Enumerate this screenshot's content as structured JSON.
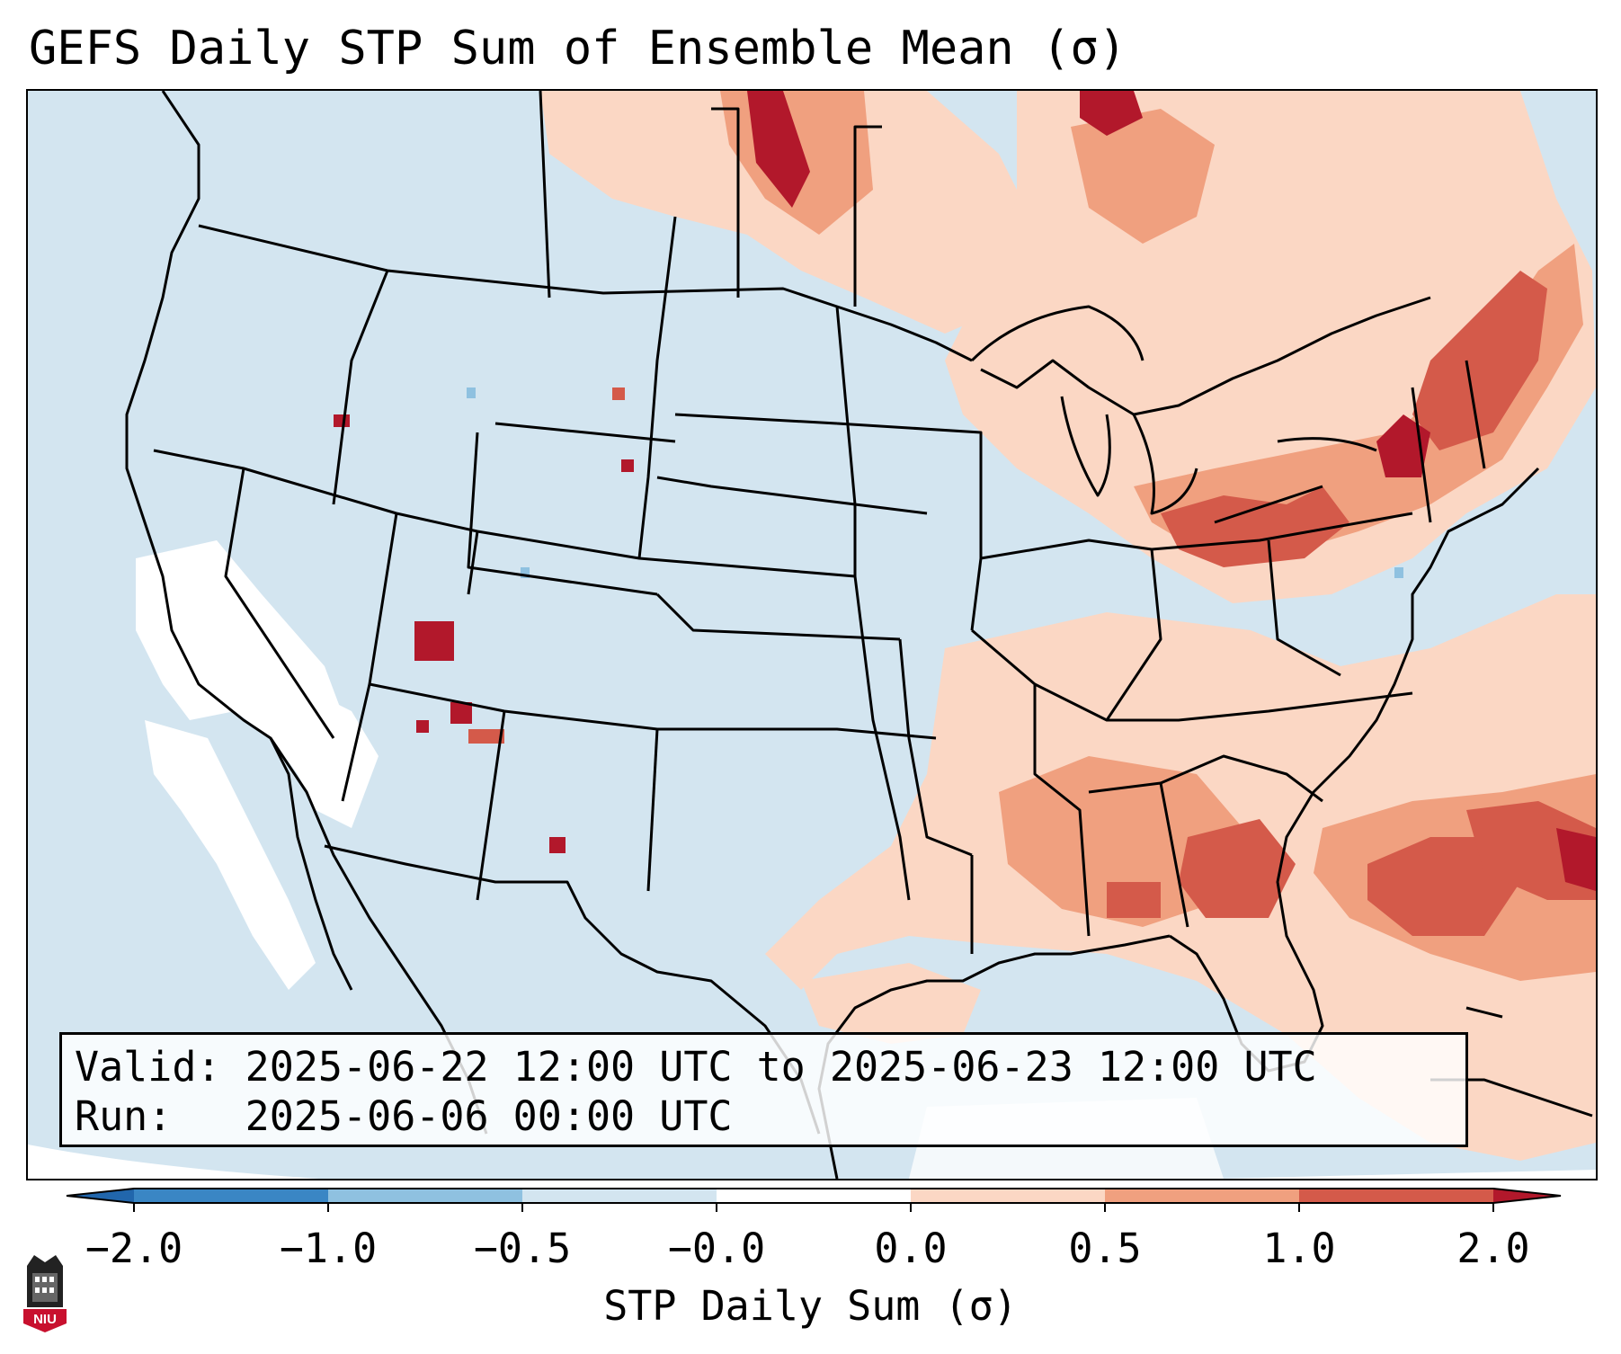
{
  "title": "GEFS Daily STP Sum of Ensemble Mean (σ)",
  "info": {
    "valid_label": "Valid:",
    "valid_value": "2025-06-22 12:00 UTC to 2025-06-23 12:00 UTC",
    "run_label": "Run:",
    "run_value": "2025-06-06 00:00 UTC"
  },
  "colorbar": {
    "label": "STP Daily Sum (σ)",
    "ticks": [
      "−2.0",
      "−1.0",
      "−0.5",
      "−0.0",
      "0.0",
      "0.5",
      "1.0",
      "2.0"
    ],
    "bins": [
      {
        "from": "-2.0",
        "to": "-1.0",
        "color": "#3a86c4"
      },
      {
        "from": "-1.0",
        "to": "-0.5",
        "color": "#8fc1e0"
      },
      {
        "from": "-0.5",
        "to": "-0.0",
        "color": "#d3e5f0"
      },
      {
        "from": "-0.0",
        "to": "0.0",
        "color": "#ffffff"
      },
      {
        "from": "0.0",
        "to": "0.5",
        "color": "#fbd7c4"
      },
      {
        "from": "0.5",
        "to": "1.0",
        "color": "#f0a07f"
      },
      {
        "from": "1.0",
        "to": "2.0",
        "color": "#d45a4a"
      }
    ],
    "under_color": "#2166ac",
    "over_color": "#b2182b"
  },
  "logo": {
    "text": "NIU",
    "color": "#c8102e"
  }
}
